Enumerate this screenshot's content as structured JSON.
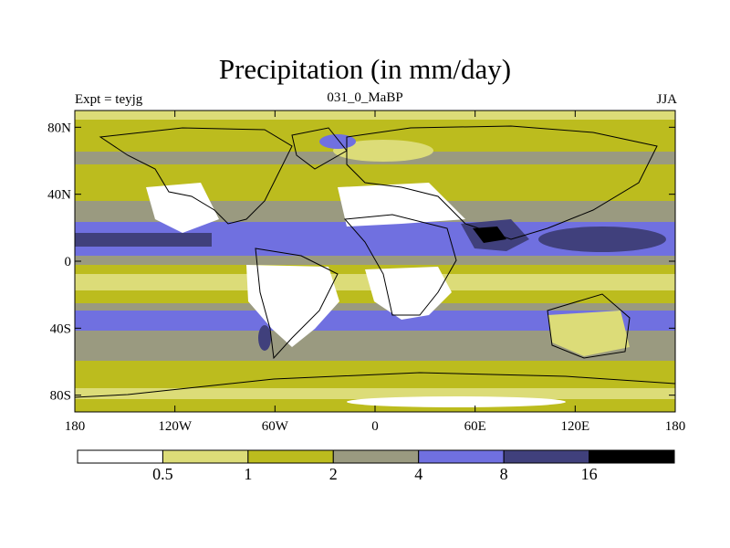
{
  "chart_data": {
    "type": "heatmap",
    "title": "Precipitation (in mm/day)",
    "left_label": "Expt = teyjg",
    "center_label": "031_0_MaBP",
    "right_label": "JJA",
    "x_ticks": [
      {
        "value": -180,
        "label": "180"
      },
      {
        "value": -120,
        "label": "120W"
      },
      {
        "value": -60,
        "label": "60W"
      },
      {
        "value": 0,
        "label": "0"
      },
      {
        "value": 60,
        "label": "60E"
      },
      {
        "value": 120,
        "label": "120E"
      },
      {
        "value": 180,
        "label": "180"
      }
    ],
    "y_ticks": [
      {
        "value": 80,
        "label": "80N"
      },
      {
        "value": 40,
        "label": "40N"
      },
      {
        "value": 0,
        "label": "0"
      },
      {
        "value": -40,
        "label": "40S"
      },
      {
        "value": -80,
        "label": "80S"
      }
    ],
    "xlim": [
      -180,
      180
    ],
    "ylim": [
      -90,
      90
    ],
    "colorbar": {
      "levels": [
        "0.5",
        "1",
        "2",
        "4",
        "8",
        "16"
      ],
      "colors": [
        "#ffffff",
        "#dcdc78",
        "#bcbc1e",
        "#9a9a80",
        "#7070e0",
        "#40407c",
        "#000000"
      ]
    }
  }
}
